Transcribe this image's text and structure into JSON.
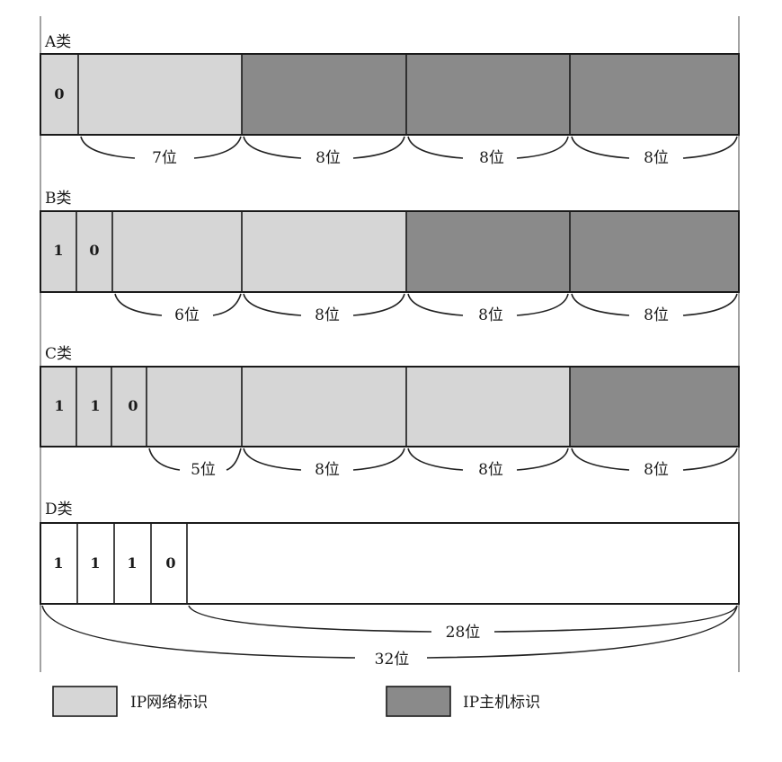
{
  "colors": {
    "network": "#d6d6d6",
    "host": "#8a8a8a",
    "empty": "#ffffff",
    "line": "#1a1a1a"
  },
  "classes": [
    {
      "id": "a",
      "name": "A类",
      "bits": [
        "0"
      ],
      "segments": [
        "network",
        "host",
        "host",
        "host"
      ],
      "brace_labels": [
        "7位",
        "8位",
        "8位",
        "8位"
      ]
    },
    {
      "id": "b",
      "name": "B类",
      "bits": [
        "1",
        "0"
      ],
      "segments": [
        "network",
        "network",
        "host",
        "host"
      ],
      "brace_labels": [
        "6位",
        "8位",
        "8位",
        "8位"
      ]
    },
    {
      "id": "c",
      "name": "C类",
      "bits": [
        "1",
        "1",
        "0"
      ],
      "segments": [
        "network",
        "network",
        "network",
        "host"
      ],
      "brace_labels": [
        "5位",
        "8位",
        "8位",
        "8位"
      ]
    },
    {
      "id": "d",
      "name": "D类",
      "bits": [
        "1",
        "1",
        "1",
        "0"
      ],
      "segments": [
        "empty"
      ],
      "brace_labels": [
        "28位",
        "32位"
      ]
    }
  ],
  "legend": [
    {
      "key": "network",
      "label": "IP网络标识"
    },
    {
      "key": "host",
      "label": "IP主机标识"
    }
  ]
}
